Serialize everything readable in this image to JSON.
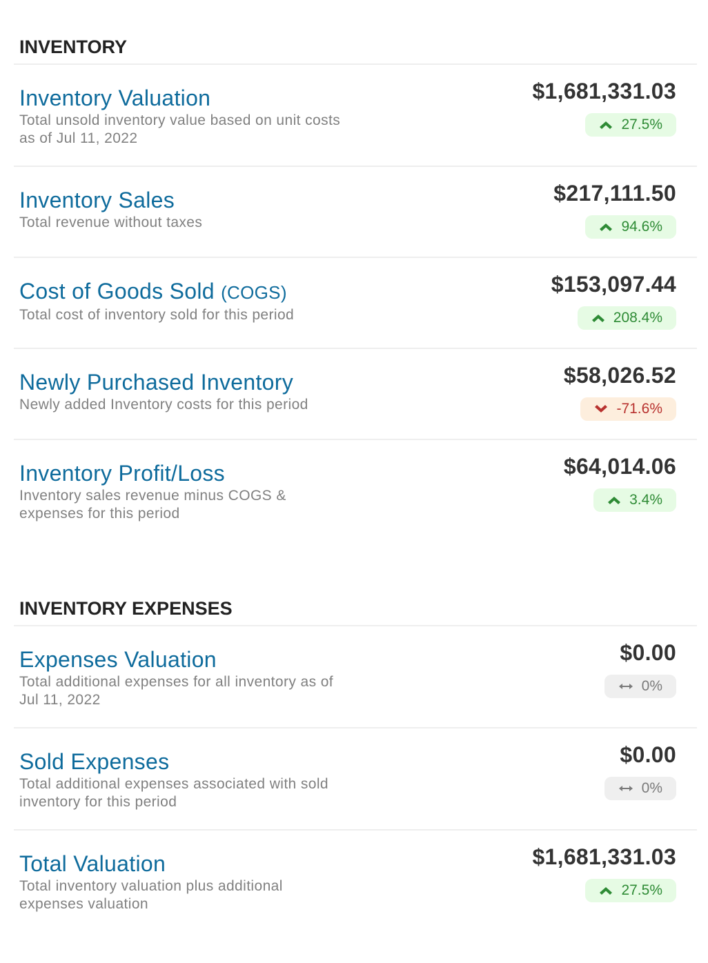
{
  "colors": {
    "title": "#0e6b9c",
    "up_bg": "#e6fbe4",
    "up_fg": "#2e8b35",
    "down_bg": "#fdeedd",
    "down_fg": "#b8322f",
    "flat_bg": "#efefef",
    "flat_fg": "#7a7a7a"
  },
  "sections": [
    {
      "heading": "INVENTORY",
      "rows": [
        {
          "title": "Inventory Valuation",
          "desc": "Total unsold inventory value based on unit costs as of Jul 11, 2022",
          "value": "$1,681,331.03",
          "change": "27.5%",
          "trend": "up",
          "icon": "chevron-up-icon"
        },
        {
          "title": "Inventory Sales",
          "desc": "Total revenue without taxes",
          "value": "$217,111.50",
          "change": "94.6%",
          "trend": "up",
          "icon": "chevron-up-icon"
        },
        {
          "title": "Cost of Goods Sold",
          "abbr": "(COGS)",
          "desc": "Total cost of inventory sold for this period",
          "value": "$153,097.44",
          "change": "208.4%",
          "trend": "up",
          "icon": "chevron-up-icon"
        },
        {
          "title": "Newly Purchased Inventory",
          "desc": "Newly added Inventory costs for this period",
          "value": "$58,026.52",
          "change": "-71.6%",
          "trend": "down",
          "icon": "chevron-down-icon"
        },
        {
          "title": "Inventory Profit/Loss",
          "desc": "Inventory sales revenue minus COGS & expenses for this period",
          "value": "$64,014.06",
          "change": "3.4%",
          "trend": "up",
          "icon": "chevron-up-icon"
        }
      ]
    },
    {
      "heading": "INVENTORY EXPENSES",
      "rows": [
        {
          "title": "Expenses Valuation",
          "desc": "Total additional expenses for all inventory as of Jul 11, 2022",
          "value": "$0.00",
          "change": "0%",
          "trend": "flat",
          "icon": "arrows-horizontal-icon"
        },
        {
          "title": "Sold Expenses",
          "desc": "Total additional expenses associated with sold inventory for this period",
          "value": "$0.00",
          "change": "0%",
          "trend": "flat",
          "icon": "arrows-horizontal-icon"
        },
        {
          "title": "Total Valuation",
          "desc": "Total inventory valuation plus additional expenses valuation",
          "value": "$1,681,331.03",
          "change": "27.5%",
          "trend": "up",
          "icon": "chevron-up-icon"
        }
      ]
    }
  ]
}
